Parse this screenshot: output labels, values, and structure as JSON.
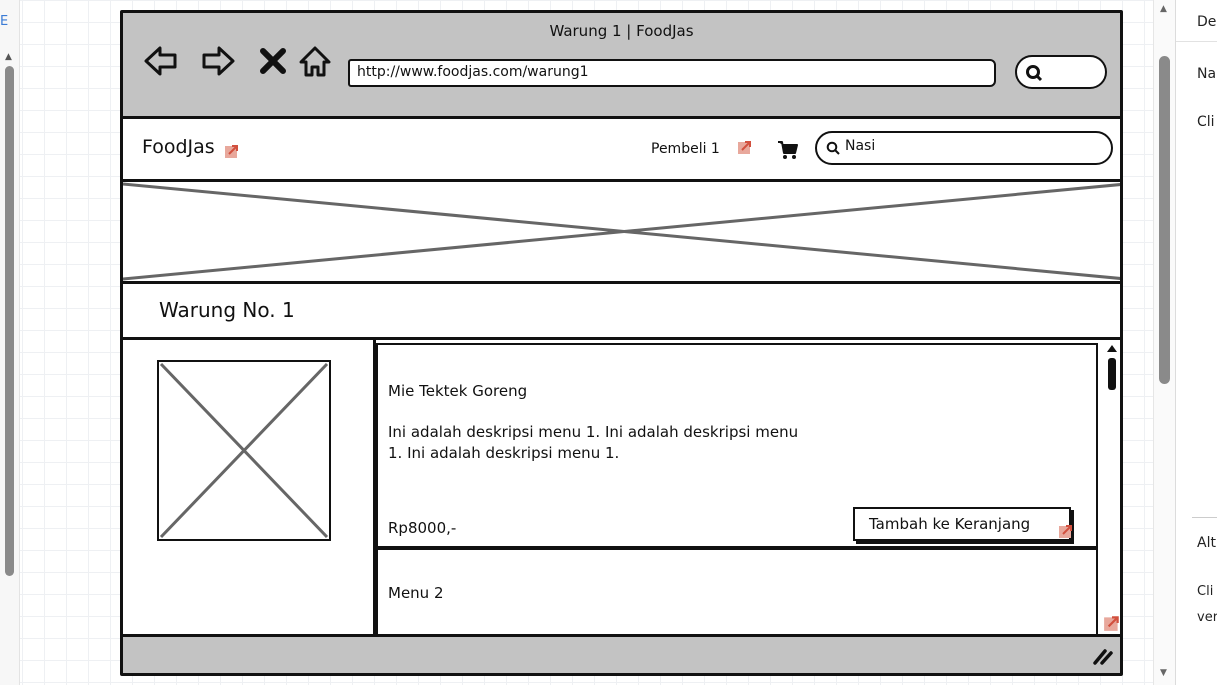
{
  "editor": {
    "left_tag": "E",
    "right_panel": {
      "header": "De",
      "label_1": "Na",
      "label_2": "Cli",
      "label_3": "Alt",
      "label_4": "Cli",
      "label_5": "ver"
    }
  },
  "mockup": {
    "window_title": "Warung 1 | FoodJas",
    "url": "http://www.foodjas.com/warung1",
    "nav_icons": [
      "back-arrow-icon",
      "forward-arrow-icon",
      "close-x-icon",
      "home-icon"
    ],
    "brand": "FoodJas",
    "user_label": "Pembeli 1",
    "search_value": "Nasi",
    "shop_title": "Warung No. 1",
    "menu_items": [
      {
        "name": "Mie Tektek Goreng",
        "description": "Ini adalah deskripsi menu 1. Ini adalah deskripsi menu 1. Ini adalah deskripsi menu 1.",
        "price": "Rp8000,-",
        "button_label": "Tambah ke Keranjang"
      },
      {
        "name": "Menu 2"
      }
    ],
    "colors": {
      "chrome_gray": "#c3c3c3",
      "ink": "#111111",
      "link_marker": "#e06a5a"
    }
  }
}
